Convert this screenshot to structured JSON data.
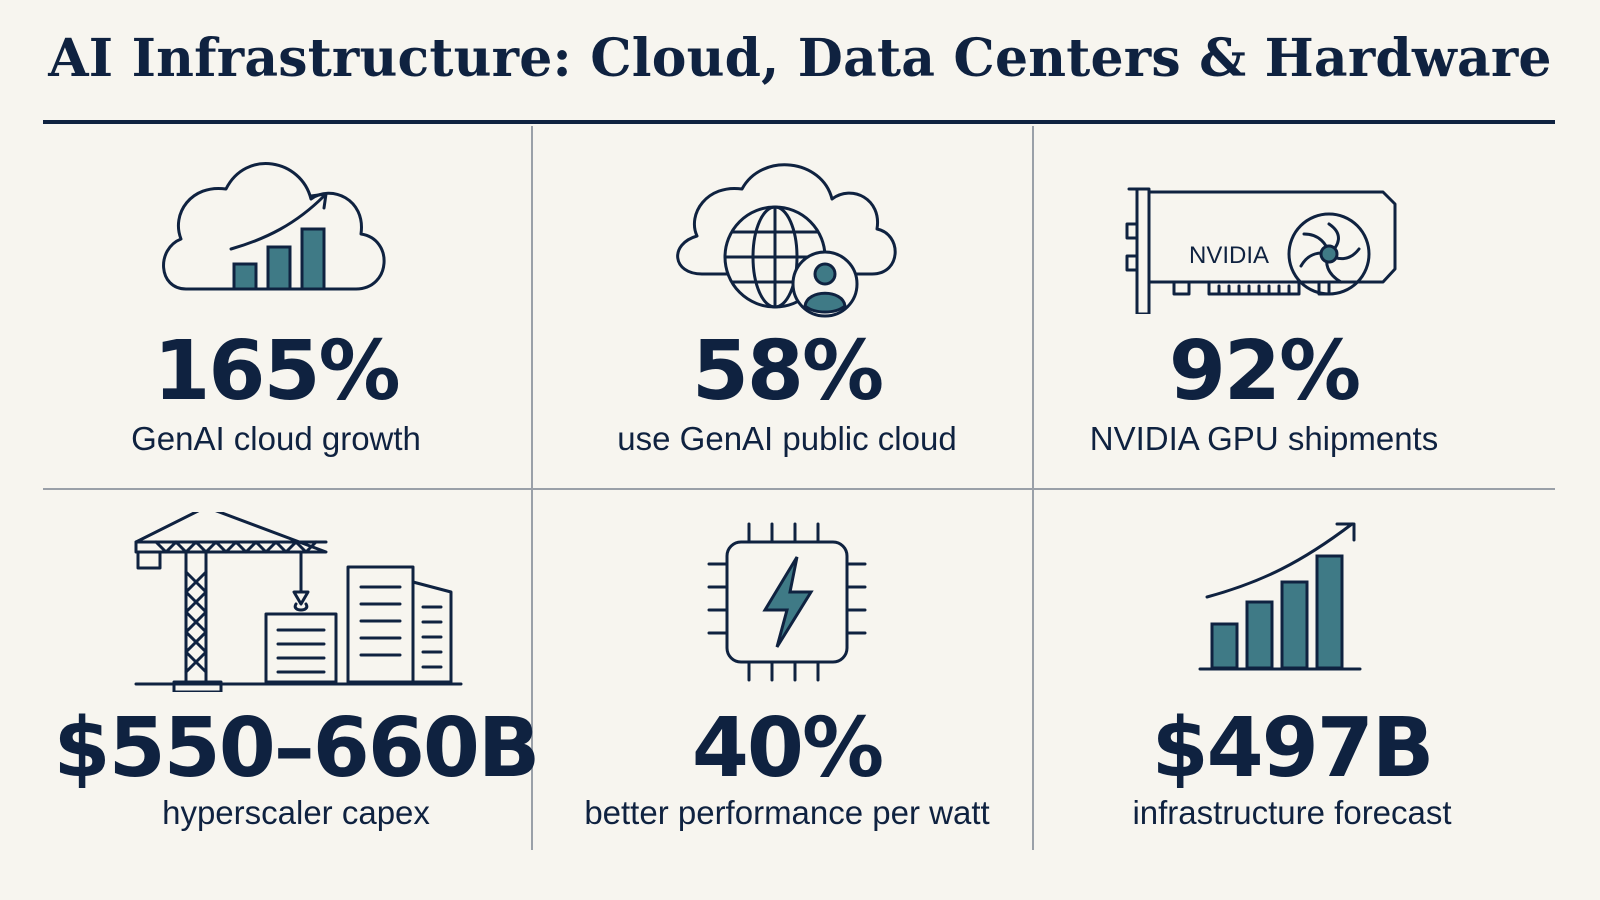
{
  "title": "AI Infrastructure: Cloud, Data Centers & Hardware",
  "cards": [
    {
      "stat": "165%",
      "label": "GenAI cloud growth",
      "icon": "cloud-growth-chart-icon"
    },
    {
      "stat": "58%",
      "label": "use GenAI public cloud",
      "icon": "cloud-globe-user-icon"
    },
    {
      "stat": "92%",
      "label": "NVIDIA GPU shipments",
      "icon": "gpu-card-icon",
      "icon_text": "NVIDIA"
    },
    {
      "stat": "$550–660B",
      "label": "hyperscaler capex",
      "icon": "construction-crane-buildings-icon"
    },
    {
      "stat": "40%",
      "label": "better performance per watt",
      "icon": "chip-lightning-icon"
    },
    {
      "stat": "$497B",
      "label": "infrastructure forecast",
      "icon": "bar-chart-growth-icon"
    }
  ],
  "colors": {
    "navy": "#0f2240",
    "teal": "#3f7a86",
    "background": "#f7f5ef",
    "divider": "#9aa0a8"
  }
}
